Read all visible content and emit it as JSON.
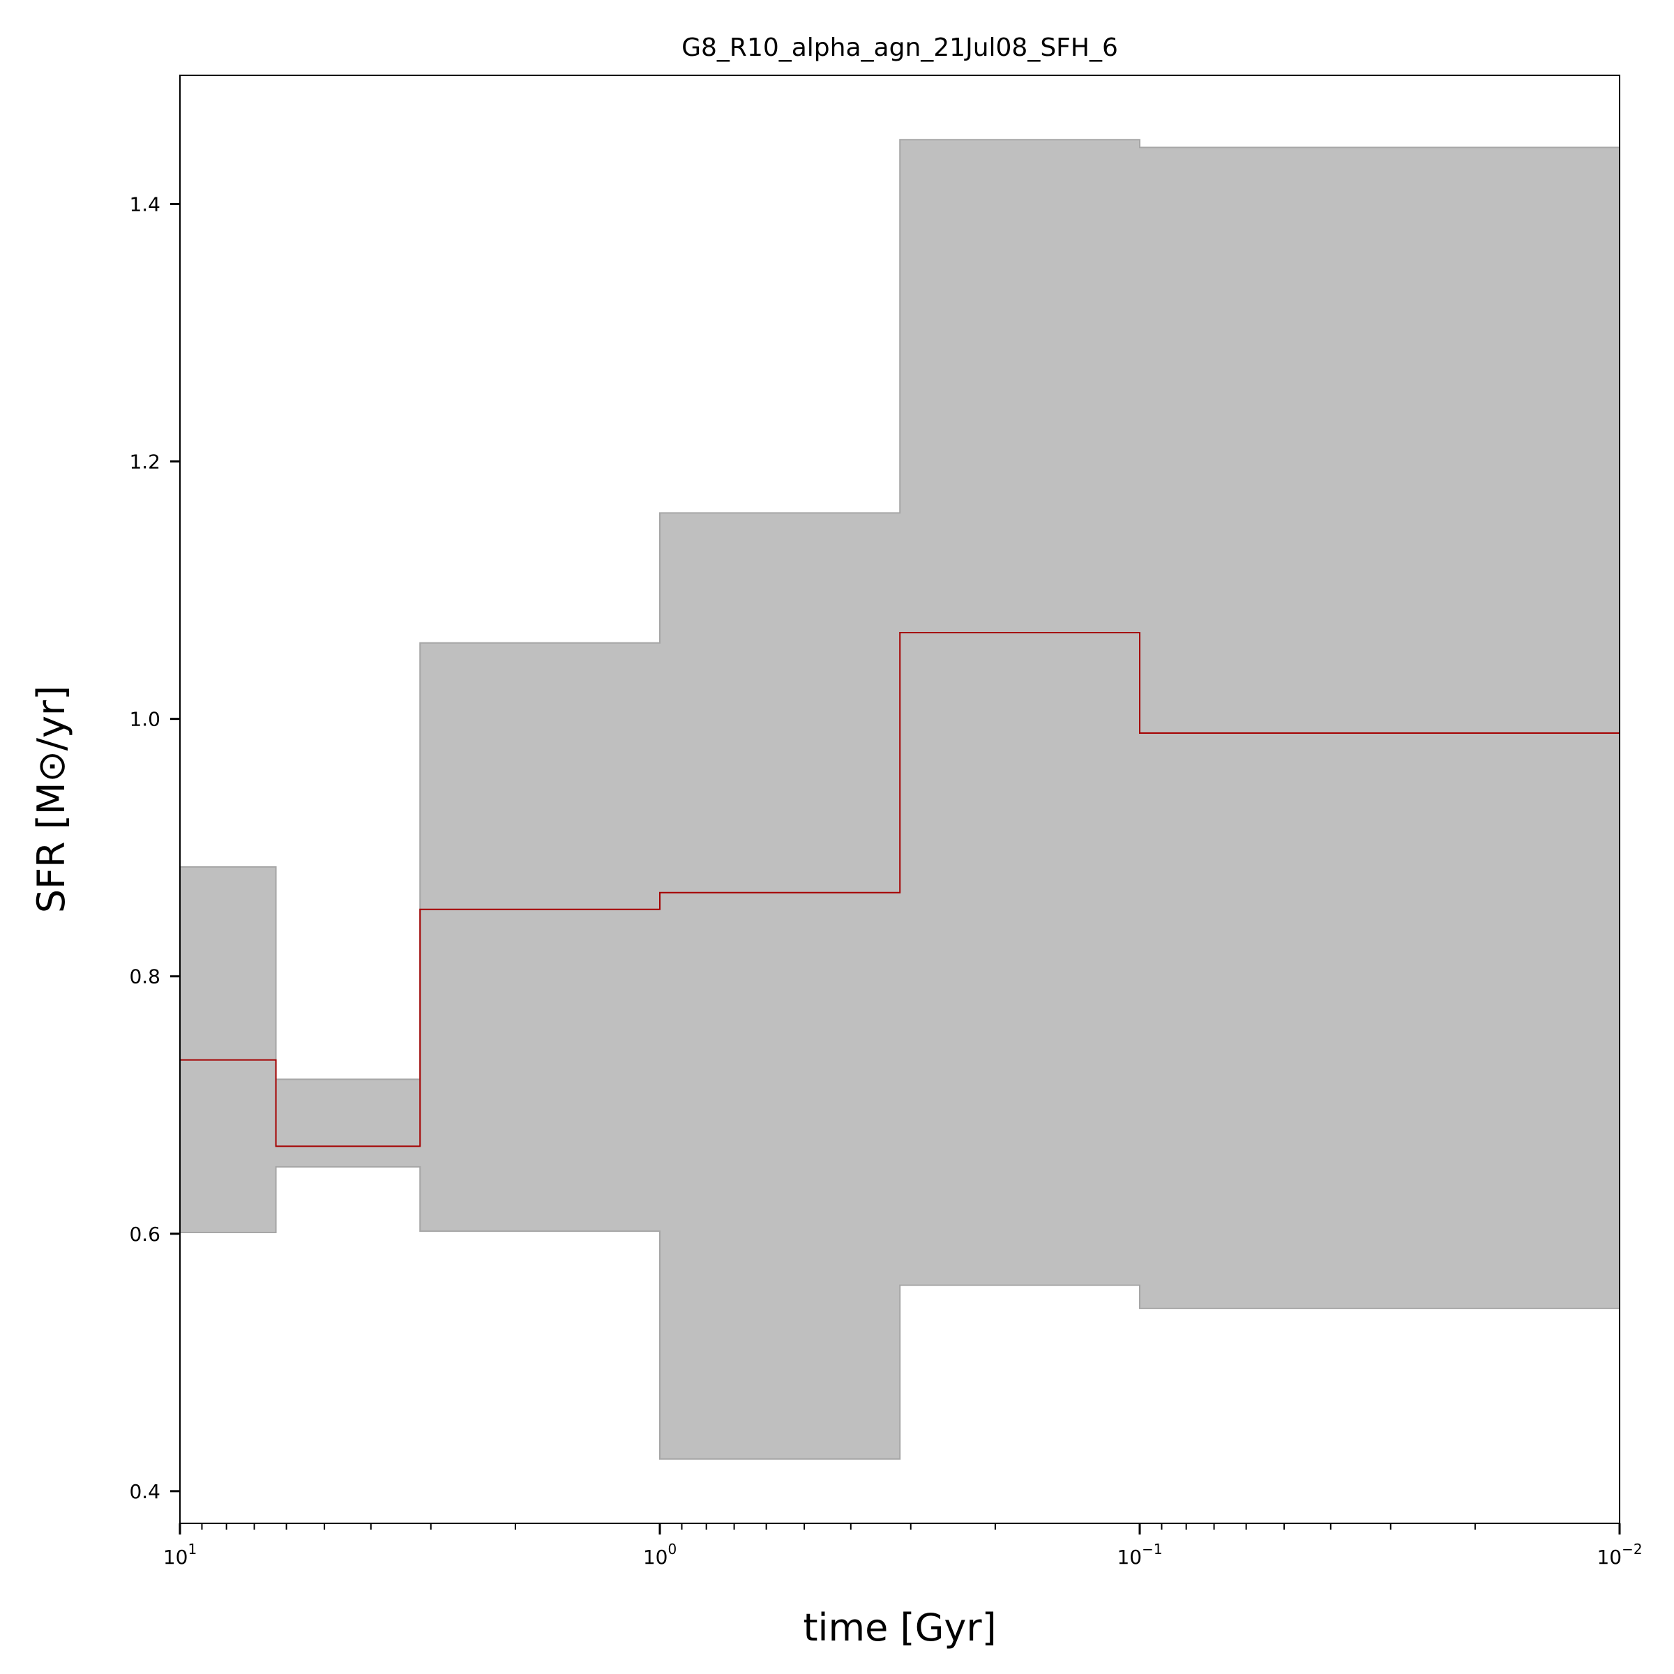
{
  "chart_data": {
    "type": "area",
    "title": "G8_R10_alpha_agn_21Jul08_SFH_6",
    "xlabel": "time [Gyr]",
    "ylabel": "SFR [M⊙/yr]",
    "xscale": "log",
    "x_reversed": true,
    "xlim": [
      10,
      0.01
    ],
    "ylim": [
      0.375,
      1.5
    ],
    "grid": false,
    "x_ticks": [
      {
        "value": 10,
        "base": "10",
        "exp": "1"
      },
      {
        "value": 1,
        "base": "10",
        "exp": "0"
      },
      {
        "value": 0.1,
        "base": "10",
        "exp": "−1"
      },
      {
        "value": 0.01,
        "base": "10",
        "exp": "−2"
      }
    ],
    "y_ticks": [
      {
        "value": 0.4,
        "label": "0.4"
      },
      {
        "value": 0.6,
        "label": "0.6"
      },
      {
        "value": 0.8,
        "label": "0.8"
      },
      {
        "value": 1.0,
        "label": "1.0"
      },
      {
        "value": 1.2,
        "label": "1.2"
      },
      {
        "value": 1.4,
        "label": "1.4"
      }
    ],
    "bins": [
      {
        "x_start": 10,
        "x_end": 6.31,
        "median": 0.735,
        "lower": 0.601,
        "upper": 0.885
      },
      {
        "x_start": 6.31,
        "x_end": 3.16,
        "median": 0.668,
        "lower": 0.652,
        "upper": 0.72
      },
      {
        "x_start": 3.16,
        "x_end": 1.0,
        "median": 0.852,
        "lower": 0.602,
        "upper": 1.059
      },
      {
        "x_start": 1.0,
        "x_end": 0.316,
        "median": 0.865,
        "lower": 0.425,
        "upper": 1.16
      },
      {
        "x_start": 0.316,
        "x_end": 0.1,
        "median": 1.067,
        "lower": 0.56,
        "upper": 1.45
      },
      {
        "x_start": 0.1,
        "x_end": 0.01,
        "median": 0.989,
        "lower": 0.542,
        "upper": 1.444
      }
    ],
    "colors": {
      "band": "#bfbfbf",
      "band_edge": "#a6a6a6",
      "median": "#a50000",
      "axes": "#000000"
    }
  }
}
